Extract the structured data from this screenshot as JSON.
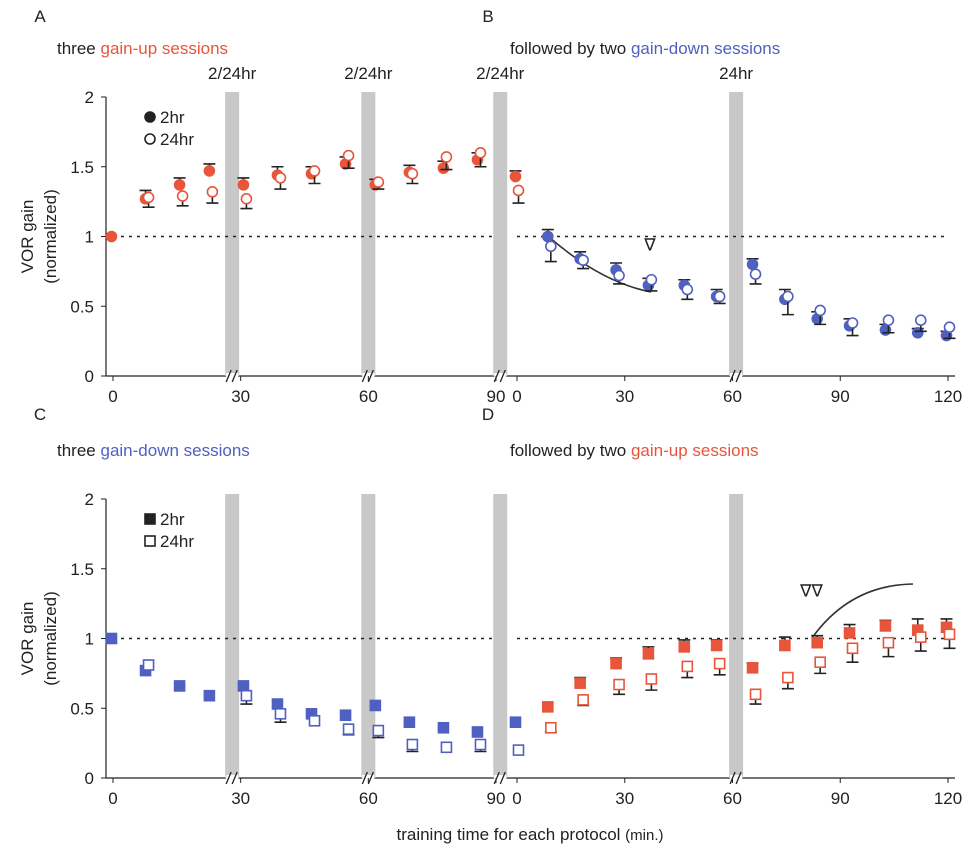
{
  "chart_data": [
    {
      "type": "scatter",
      "letter": "A",
      "title": [
        "three ",
        "gain-up sessions"
      ],
      "title_colors": [
        "#222222",
        "#e8553a"
      ],
      "ylabel": [
        "VOR gain",
        "(normalized)"
      ],
      "xlim": [
        0,
        90
      ],
      "xticks": [
        0,
        30,
        60,
        90
      ],
      "ylim": [
        0,
        2
      ],
      "yticks": [
        0,
        0.5,
        1,
        1.5,
        2
      ],
      "hline": 1,
      "marker": "circle",
      "legend": true,
      "breaks": [
        {
          "x": 28,
          "label": "2/24hr"
        },
        {
          "x": 60,
          "label": "2/24hr"
        },
        {
          "x": 91,
          "label": "2/24hr"
        }
      ],
      "x": [
        0,
        8,
        16,
        23,
        31,
        39,
        47,
        55,
        62,
        70,
        78,
        86
      ],
      "point_colors": [
        "#e8553a",
        "#e8553a",
        "#e8553a",
        "#e8553a",
        "#e8553a",
        "#e8553a",
        "#e8553a",
        "#e8553a",
        "#e8553a",
        "#e8553a",
        "#e8553a",
        "#e8553a"
      ],
      "series": [
        {
          "name": "2hr",
          "filled": true,
          "values": [
            1.0,
            1.27,
            1.37,
            1.47,
            1.37,
            1.44,
            1.45,
            1.52,
            1.37,
            1.46,
            1.49,
            1.55
          ],
          "errors": [
            null,
            0.06,
            0.05,
            0.05,
            0.05,
            0.06,
            0.05,
            0.05,
            0.04,
            0.05,
            0.05,
            0.05
          ]
        },
        {
          "name": "24hr",
          "filled": false,
          "values": [
            null,
            1.28,
            1.29,
            1.32,
            1.27,
            1.42,
            1.47,
            1.58,
            1.39,
            1.45,
            1.57,
            1.6
          ],
          "errors": [
            null,
            0.07,
            0.07,
            0.08,
            0.07,
            0.08,
            0.09,
            0.09,
            0.05,
            0.07,
            0.09,
            0.1
          ]
        }
      ]
    },
    {
      "type": "scatter",
      "letter": "B",
      "title": [
        "followed by two ",
        "gain-down sessions"
      ],
      "title_colors": [
        "#222222",
        "#5060c0"
      ],
      "xlim": [
        0,
        120
      ],
      "xticks": [
        0,
        30,
        60,
        90,
        120
      ],
      "ylim": [
        0,
        2
      ],
      "hline": 1,
      "marker": "circle",
      "breaks": [
        {
          "x": 61,
          "label": "24hr"
        }
      ],
      "annotations": [
        {
          "text": "∇",
          "x": 37,
          "y": 0.9
        }
      ],
      "x": [
        0,
        9,
        18,
        28,
        37,
        47,
        56,
        66,
        75,
        84,
        93,
        103,
        112,
        120
      ],
      "point_colors": [
        "#e8553a",
        "#5060c0",
        "#5060c0",
        "#5060c0",
        "#5060c0",
        "#5060c0",
        "#5060c0",
        "#5060c0",
        "#5060c0",
        "#5060c0",
        "#5060c0",
        "#5060c0",
        "#5060c0",
        "#5060c0"
      ],
      "series": [
        {
          "filled": true,
          "values": [
            1.43,
            1.0,
            0.84,
            0.76,
            0.65,
            0.65,
            0.57,
            0.8,
            0.55,
            0.41,
            0.36,
            0.33,
            0.31,
            0.29
          ],
          "errors": [
            0.04,
            0.05,
            0.05,
            0.05,
            0.05,
            0.04,
            0.05,
            0.04,
            0.07,
            0.05,
            0.05,
            0.04,
            0.03,
            0.03
          ]
        },
        {
          "filled": false,
          "values": [
            1.33,
            0.93,
            0.83,
            0.72,
            0.69,
            0.62,
            0.57,
            0.73,
            0.57,
            0.47,
            0.38,
            0.4,
            0.4,
            0.35
          ],
          "errors": [
            0.09,
            0.11,
            0.06,
            0.06,
            0.08,
            0.07,
            0.05,
            0.07,
            0.13,
            0.1,
            0.09,
            0.09,
            0.08,
            0.08
          ]
        }
      ]
    },
    {
      "type": "scatter",
      "letter": "C",
      "title": [
        "three ",
        "gain-down sessions"
      ],
      "title_colors": [
        "#222222",
        "#5060c0"
      ],
      "ylabel": [
        "VOR gain",
        "(normalized)"
      ],
      "xlabel": [
        "training time for each protocol",
        "(min.)"
      ],
      "xlim": [
        0,
        90
      ],
      "xticks": [
        0,
        30,
        60,
        90
      ],
      "ylim": [
        0,
        2
      ],
      "yticks": [
        0,
        0.5,
        1,
        1.5,
        2
      ],
      "hline": 1,
      "marker": "square",
      "legend": true,
      "breaks": [
        {
          "x": 28
        },
        {
          "x": 60
        },
        {
          "x": 91
        }
      ],
      "x": [
        0,
        8,
        16,
        23,
        31,
        39,
        47,
        55,
        62,
        70,
        78,
        86
      ],
      "point_colors": [
        "#5060c0",
        "#5060c0",
        "#5060c0",
        "#5060c0",
        "#5060c0",
        "#5060c0",
        "#5060c0",
        "#5060c0",
        "#5060c0",
        "#5060c0",
        "#5060c0",
        "#5060c0"
      ],
      "series": [
        {
          "name": "2hr",
          "filled": true,
          "values": [
            1.0,
            0.77,
            0.66,
            0.59,
            0.66,
            0.53,
            0.46,
            0.45,
            0.52,
            0.4,
            0.36,
            0.33
          ],
          "errors": [
            null,
            null,
            null,
            null,
            null,
            null,
            null,
            null,
            null,
            null,
            null,
            null
          ]
        },
        {
          "name": "24hr",
          "filled": false,
          "values": [
            null,
            0.81,
            null,
            null,
            0.59,
            0.46,
            0.41,
            0.35,
            0.34,
            0.24,
            0.22,
            0.24
          ],
          "errors": [
            null,
            null,
            null,
            null,
            0.06,
            0.06,
            null,
            0.04,
            0.05,
            0.05,
            null,
            0.05
          ]
        }
      ]
    },
    {
      "type": "scatter",
      "letter": "D",
      "title": [
        "followed by two ",
        "gain-up sessions"
      ],
      "title_colors": [
        "#222222",
        "#e8553a"
      ],
      "xlim": [
        0,
        120
      ],
      "xticks": [
        0,
        30,
        60,
        90,
        120
      ],
      "ylim": [
        0,
        2
      ],
      "hline": 1,
      "marker": "square",
      "breaks": [
        {
          "x": 61
        }
      ],
      "annotations": [
        {
          "text": "∇∇",
          "x": 82,
          "y": 1.3
        }
      ],
      "x": [
        0,
        9,
        18,
        28,
        37,
        47,
        56,
        66,
        75,
        84,
        93,
        103,
        112,
        120
      ],
      "point_colors": [
        "#5060c0",
        "#e8553a",
        "#e8553a",
        "#e8553a",
        "#e8553a",
        "#e8553a",
        "#e8553a",
        "#e8553a",
        "#e8553a",
        "#e8553a",
        "#e8553a",
        "#e8553a",
        "#e8553a",
        "#e8553a"
      ],
      "series": [
        {
          "filled": true,
          "values": [
            0.4,
            0.51,
            0.68,
            0.82,
            0.89,
            0.94,
            0.95,
            0.79,
            0.95,
            0.97,
            1.04,
            1.09,
            1.06,
            1.08
          ],
          "errors": [
            null,
            null,
            0.04,
            0.04,
            0.05,
            0.05,
            0.04,
            0.03,
            0.06,
            0.05,
            0.06,
            0.04,
            0.08,
            0.06
          ]
        },
        {
          "filled": false,
          "values": [
            0.2,
            0.36,
            0.56,
            0.67,
            0.71,
            0.8,
            0.82,
            0.6,
            0.72,
            0.83,
            0.93,
            0.97,
            1.01,
            1.03
          ],
          "errors": [
            null,
            0.03,
            0.04,
            0.07,
            0.08,
            0.08,
            0.08,
            0.07,
            0.08,
            0.08,
            0.1,
            0.1,
            0.1,
            0.1
          ]
        }
      ]
    }
  ]
}
